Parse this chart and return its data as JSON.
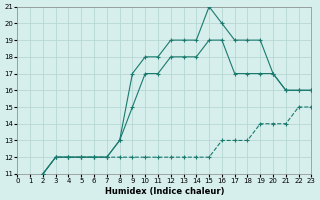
{
  "xlabel": "Humidex (Indice chaleur)",
  "bg_color": "#d6eeec",
  "grid_color": "#b8d8d5",
  "line_color": "#1a7a6e",
  "xlim": [
    0,
    23
  ],
  "ylim": [
    11,
    21
  ],
  "xticks": [
    0,
    1,
    2,
    3,
    4,
    5,
    6,
    7,
    8,
    9,
    10,
    11,
    12,
    13,
    14,
    15,
    16,
    17,
    18,
    19,
    20,
    21,
    22,
    23
  ],
  "yticks": [
    11,
    12,
    13,
    14,
    15,
    16,
    17,
    18,
    19,
    20,
    21
  ],
  "line1_x": [
    2,
    3,
    4,
    5,
    6,
    7,
    8,
    9,
    10,
    11,
    12,
    13,
    14,
    15,
    16,
    17,
    18,
    19,
    20,
    21,
    22,
    23
  ],
  "line1_y": [
    11,
    12,
    12,
    12,
    12,
    12,
    12,
    12,
    12,
    12,
    12,
    12,
    12,
    12,
    13,
    13,
    13,
    14,
    14,
    14,
    15,
    15
  ],
  "line2_x": [
    2,
    3,
    4,
    5,
    6,
    7,
    8,
    9,
    10,
    11,
    12,
    13,
    14,
    15,
    16,
    17,
    18,
    19,
    20,
    21,
    22,
    23
  ],
  "line2_y": [
    11,
    12,
    12,
    12,
    12,
    12,
    13,
    15,
    17,
    17,
    18,
    18,
    18,
    19,
    19,
    17,
    17,
    17,
    17,
    16,
    16,
    16
  ],
  "line3_x": [
    2,
    3,
    4,
    5,
    6,
    7,
    8,
    9,
    10,
    11,
    12,
    13,
    14,
    15,
    16,
    17,
    18,
    19,
    20,
    21,
    22,
    23
  ],
  "line3_y": [
    11,
    12,
    12,
    12,
    12,
    12,
    13,
    17,
    18,
    18,
    19,
    19,
    19,
    21,
    20,
    19,
    19,
    19,
    17,
    16,
    16,
    16
  ]
}
